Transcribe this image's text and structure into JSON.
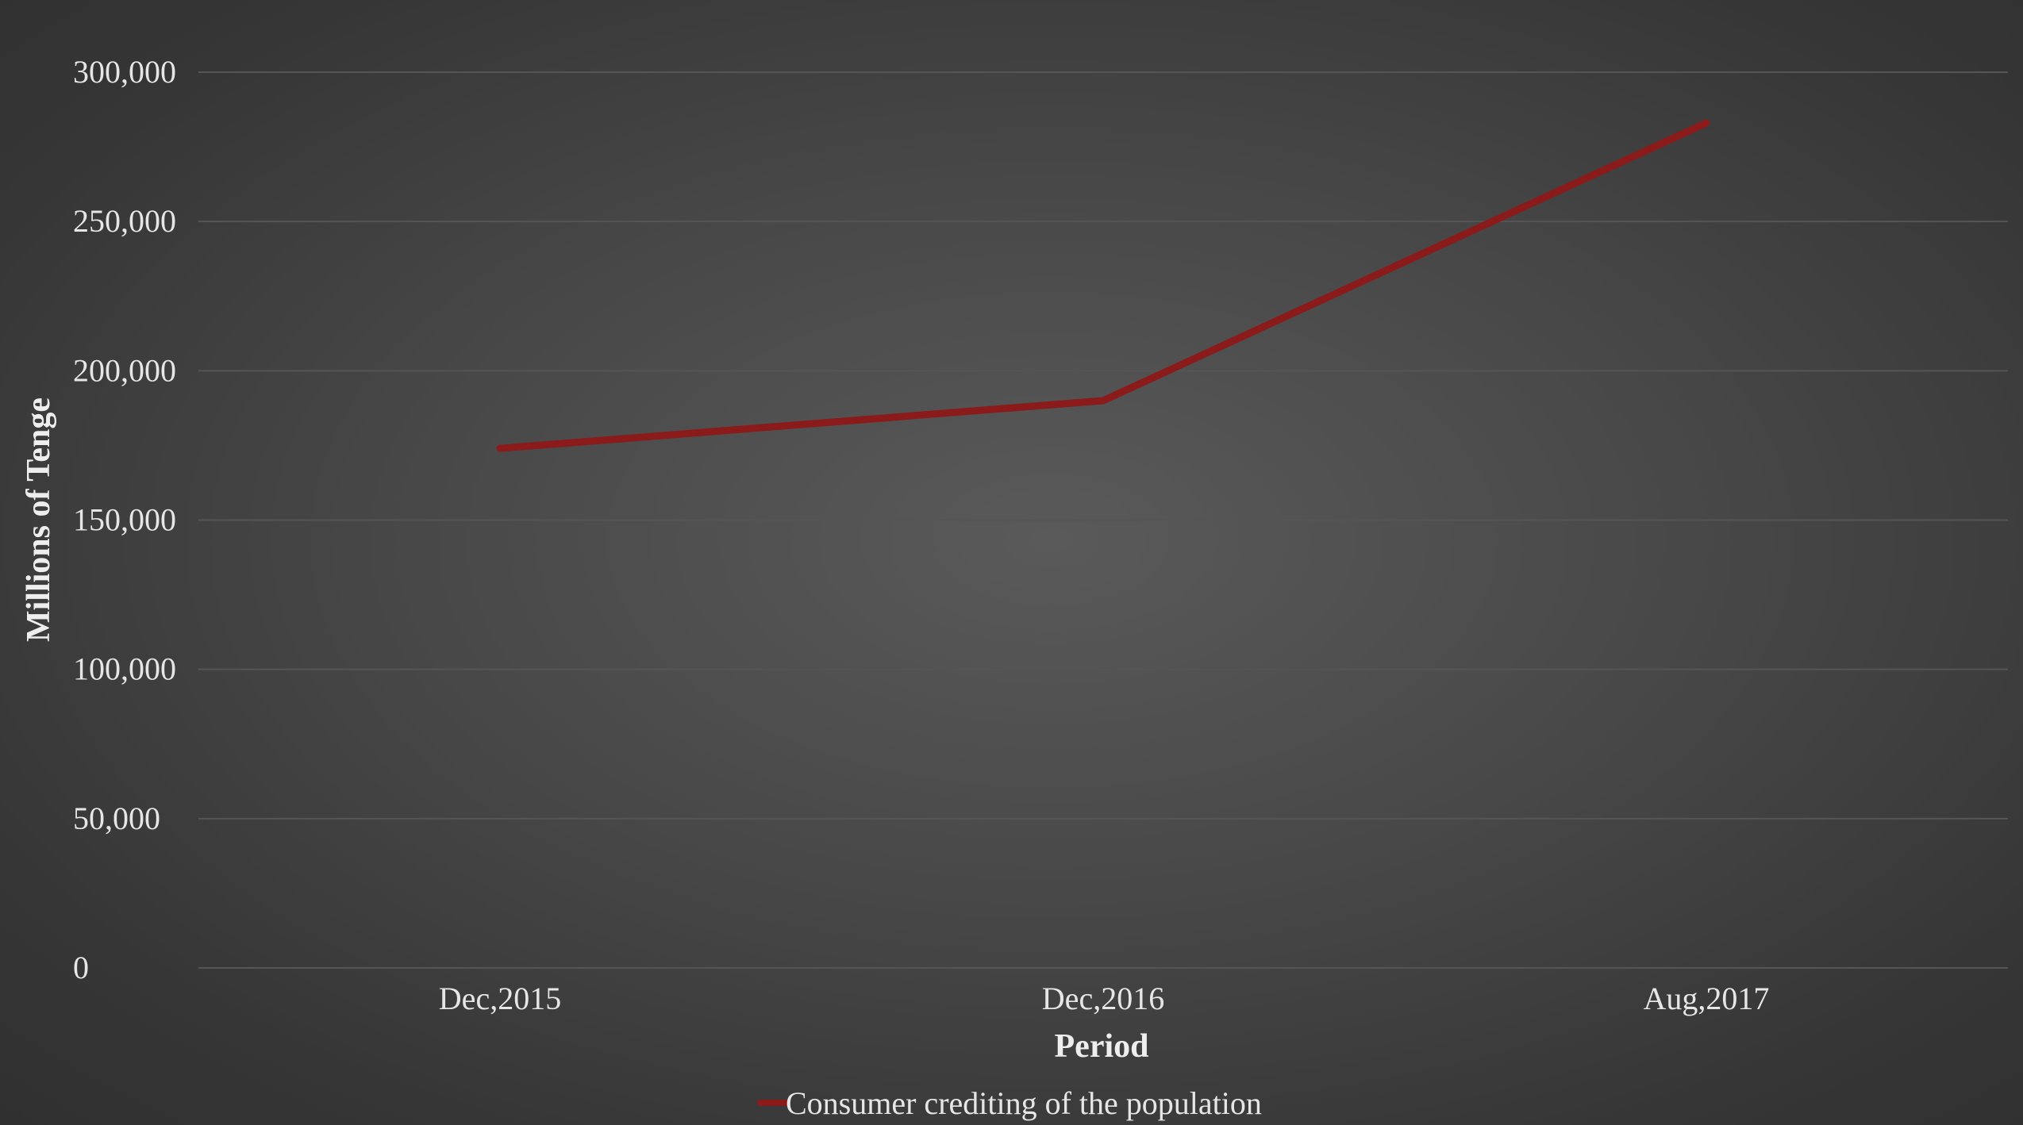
{
  "chart_data": {
    "type": "line",
    "title": "",
    "xlabel": "Period",
    "ylabel": "Millions of Tenge",
    "categories": [
      "Dec,2015",
      "Dec,2016",
      "Aug,2017"
    ],
    "ylim": [
      0,
      300000
    ],
    "yticks": [
      0,
      50000,
      100000,
      150000,
      200000,
      250000,
      300000
    ],
    "ytick_labels": [
      "0",
      "50,000",
      "100,000",
      "150,000",
      "200,000",
      "250,000",
      "300,000"
    ],
    "grid": true,
    "legend": "bottom-center",
    "series": [
      {
        "name": "Consumer crediting of the population",
        "color": "#8b1a1a",
        "values": [
          174000,
          190000,
          283000
        ]
      }
    ]
  }
}
